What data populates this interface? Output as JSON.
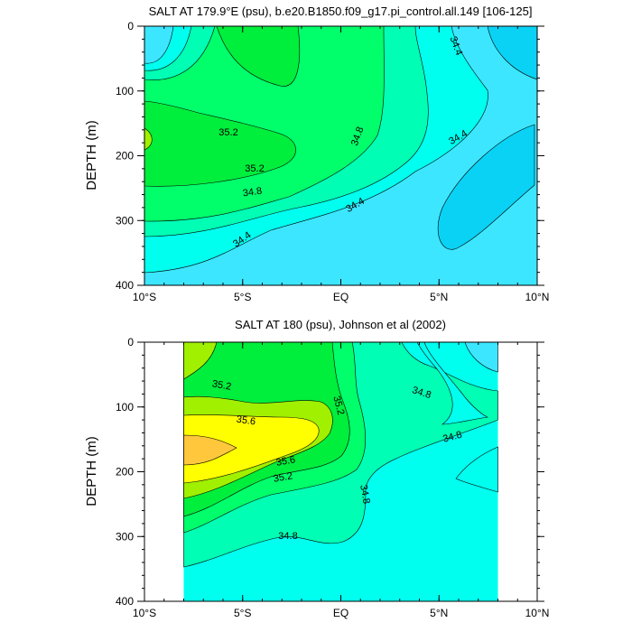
{
  "chart_data": [
    {
      "type": "heatmap",
      "subtype": "filled contour",
      "title": "SALT AT 179.9°E (psu), b.e20.B1850.f09_g17.pi_control.all.149 [106-125]",
      "xlabel": "",
      "ylabel": "DEPTH (m)",
      "xlim": [
        -10,
        10
      ],
      "ylim": [
        400,
        0
      ],
      "x_ticks": [
        {
          "value": -10,
          "label": "10°S"
        },
        {
          "value": -5,
          "label": "5°S"
        },
        {
          "value": 0,
          "label": "EQ"
        },
        {
          "value": 5,
          "label": "5°N"
        },
        {
          "value": 10,
          "label": "10°N"
        }
      ],
      "y_ticks": [
        0,
        100,
        200,
        300,
        400
      ],
      "contour_levels": [
        34.2,
        34.4,
        34.6,
        34.8,
        35.0,
        35.2,
        35.4
      ],
      "contour_labels": [
        "35.2",
        "35.2",
        "34.8",
        "34.8",
        "34.4",
        "34.4",
        "34.4",
        "34.4"
      ],
      "fill_colors": {
        "34.2": "#0ad2f5",
        "34.4": "#3ce6ff",
        "34.6": "#00ffef",
        "34.8": "#00ffb4",
        "35.0": "#00ff6a",
        "35.2": "#00ee3c",
        "35.4": "#a0f000",
        "35.6": "#ffff00",
        "35.8": "#ffc83c"
      },
      "grid": false,
      "legend": "none"
    },
    {
      "type": "heatmap",
      "subtype": "filled contour",
      "title": "SALT AT 180 (psu), Johnson et al (2002)",
      "xlabel": "",
      "ylabel": "DEPTH (m)",
      "xlim": [
        -10,
        10
      ],
      "ylim": [
        400,
        0
      ],
      "data_x_range": [
        -8,
        8
      ],
      "x_ticks": [
        {
          "value": -10,
          "label": "10°S"
        },
        {
          "value": -5,
          "label": "5°S"
        },
        {
          "value": 0,
          "label": "EQ"
        },
        {
          "value": 5,
          "label": "5°N"
        },
        {
          "value": 10,
          "label": "10°N"
        }
      ],
      "y_ticks": [
        0,
        100,
        200,
        300,
        400
      ],
      "contour_levels": [
        34.6,
        34.8,
        35.0,
        35.2,
        35.4,
        35.6,
        35.8
      ],
      "contour_labels": [
        "35.2",
        "35.2",
        "35.6",
        "35.6",
        "35.2",
        "34.8",
        "34.8",
        "34.8",
        "34.8"
      ],
      "grid": false,
      "legend": "none"
    }
  ]
}
